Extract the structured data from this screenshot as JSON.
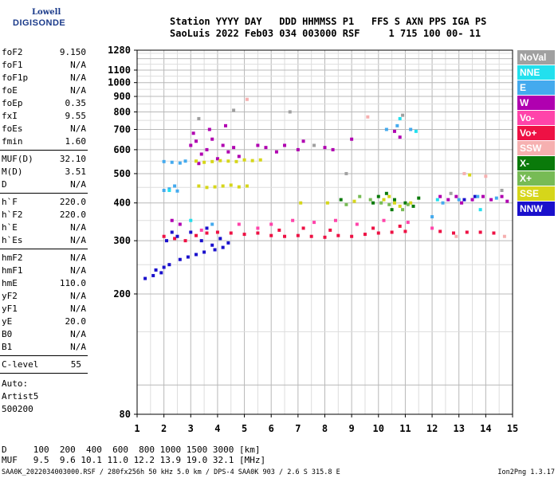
{
  "logo": {
    "line1": "Lowell",
    "line2": "DIGISONDE"
  },
  "header": {
    "line1": "Station YYYY DAY   DDD HHMMSS P1   FFS S AXN PPS IGA PS",
    "line2": "SaoLuis 2022 Feb03 034 003000 RSF     1 715 100 00- 11"
  },
  "params": {
    "block1": [
      {
        "label": "foF2",
        "value": "9.150"
      },
      {
        "label": "foF1",
        "value": "N/A"
      },
      {
        "label": "foF1p",
        "value": "N/A"
      },
      {
        "label": "foE",
        "value": "N/A"
      },
      {
        "label": "foEp",
        "value": "0.35"
      },
      {
        "label": "fxI",
        "value": "9.55"
      },
      {
        "label": "foEs",
        "value": "N/A"
      },
      {
        "label": "fmin",
        "value": "1.60"
      }
    ],
    "block2": [
      {
        "label": "MUF(D)",
        "value": "32.10"
      },
      {
        "label": "M(D)",
        "value": "3.51"
      },
      {
        "label": "D",
        "value": "N/A"
      }
    ],
    "block3": [
      {
        "label": "h`F",
        "value": "220.0"
      },
      {
        "label": "h`F2",
        "value": "220.0"
      },
      {
        "label": "h`E",
        "value": "N/A"
      },
      {
        "label": "h`Es",
        "value": "N/A"
      }
    ],
    "block4": [
      {
        "label": "hmF2",
        "value": "N/A"
      },
      {
        "label": "hmF1",
        "value": "N/A"
      },
      {
        "label": "hmE",
        "value": "110.0"
      },
      {
        "label": "yF2",
        "value": "N/A"
      },
      {
        "label": "yF1",
        "value": "N/A"
      },
      {
        "label": "yE",
        "value": "20.0"
      },
      {
        "label": "B0",
        "value": "N/A"
      },
      {
        "label": "B1",
        "value": "N/A"
      }
    ],
    "clevel": {
      "label": "C-level",
      "value": "55"
    },
    "auto": [
      "Auto:",
      "Artist5",
      "500200"
    ]
  },
  "legend": [
    {
      "label": "NoVal",
      "color": "#a0a0a0"
    },
    {
      "label": "NNE",
      "color": "#22e0ee"
    },
    {
      "label": "E",
      "color": "#44aaee"
    },
    {
      "label": "W",
      "color": "#b000b0"
    },
    {
      "label": "Vo-",
      "color": "#ff44aa"
    },
    {
      "label": "Vo+",
      "color": "#ee1144"
    },
    {
      "label": "SSW",
      "color": "#f6b0b0"
    },
    {
      "label": "X-",
      "color": "#0a7a0a"
    },
    {
      "label": "X+",
      "color": "#77bb55"
    },
    {
      "label": "SSE",
      "color": "#d6d61a"
    },
    {
      "label": "NNW",
      "color": "#1a10cc"
    }
  ],
  "muf_table": {
    "line1": "D     100  200  400  600  800 1000 1500 3000 [km]",
    "line2": "MUF   9.5  9.6 10.1 11.0 12.2 13.9 19.0 32.1 [MHz]"
  },
  "footer": "SAA0K_2022034003000.RSF / 280fx256h 50 kHz 5.0 km / DPS-4 SAA0K 903 / 2.6 S 315.8 E",
  "version": "Ion2Png 1.3.17",
  "chart_data": {
    "type": "scatter",
    "title": "",
    "xlabel": "",
    "ylabel": "",
    "xlim": [
      1,
      15
    ],
    "ylim": [
      80,
      1280
    ],
    "x_ticks": [
      1,
      2,
      3,
      4,
      5,
      6,
      7,
      8,
      9,
      10,
      11,
      12,
      13,
      14,
      15
    ],
    "y_ticks": [
      80,
      200,
      300,
      400,
      500,
      600,
      700,
      800,
      900,
      1000,
      1100,
      1280
    ],
    "y_scale": "log",
    "grid": true,
    "series": [
      {
        "name": "Vo+",
        "color": "#ee1144",
        "points": [
          [
            2.0,
            310
          ],
          [
            2.4,
            305
          ],
          [
            2.8,
            300
          ],
          [
            3.2,
            312
          ],
          [
            3.6,
            318
          ],
          [
            4.0,
            320
          ],
          [
            4.5,
            318
          ],
          [
            5.0,
            315
          ],
          [
            5.5,
            318
          ],
          [
            6.0,
            312
          ],
          [
            6.5,
            310
          ],
          [
            7.0,
            312
          ],
          [
            7.5,
            310
          ],
          [
            8.0,
            308
          ],
          [
            8.5,
            312
          ],
          [
            9.0,
            310
          ],
          [
            9.5,
            315
          ],
          [
            10.0,
            318
          ],
          [
            10.5,
            320
          ],
          [
            11.0,
            322
          ],
          [
            12.3,
            322
          ],
          [
            12.8,
            318
          ],
          [
            13.3,
            320
          ],
          [
            13.8,
            320
          ],
          [
            14.3,
            318
          ],
          [
            9.8,
            330
          ],
          [
            10.8,
            335
          ],
          [
            8.2,
            325
          ],
          [
            7.2,
            330
          ],
          [
            6.3,
            325
          ]
        ]
      },
      {
        "name": "NNW",
        "color": "#1a10cc",
        "points": [
          [
            1.3,
            225
          ],
          [
            1.6,
            230
          ],
          [
            1.9,
            235
          ],
          [
            2.2,
            250
          ],
          [
            2.6,
            260
          ],
          [
            2.9,
            265
          ],
          [
            3.2,
            270
          ],
          [
            3.5,
            275
          ],
          [
            3.9,
            280
          ],
          [
            4.2,
            285
          ],
          [
            2.1,
            300
          ],
          [
            2.5,
            310
          ],
          [
            3.0,
            320
          ],
          [
            3.4,
            300
          ],
          [
            3.8,
            290
          ],
          [
            4.1,
            305
          ],
          [
            1.7,
            240
          ],
          [
            2.0,
            245
          ],
          [
            4.4,
            295
          ],
          [
            3.6,
            330
          ],
          [
            2.3,
            320
          ],
          [
            13.2,
            410
          ],
          [
            13.6,
            420
          ]
        ]
      },
      {
        "name": "W",
        "color": "#b000b0",
        "points": [
          [
            3.0,
            620
          ],
          [
            3.2,
            640
          ],
          [
            3.4,
            580
          ],
          [
            3.6,
            600
          ],
          [
            3.8,
            650
          ],
          [
            4.0,
            560
          ],
          [
            4.2,
            620
          ],
          [
            4.4,
            590
          ],
          [
            4.6,
            610
          ],
          [
            4.8,
            570
          ],
          [
            3.3,
            540
          ],
          [
            3.7,
            700
          ],
          [
            5.5,
            620
          ],
          [
            5.8,
            610
          ],
          [
            6.2,
            590
          ],
          [
            6.5,
            620
          ],
          [
            7.0,
            600
          ],
          [
            7.2,
            640
          ],
          [
            8.0,
            610
          ],
          [
            8.3,
            600
          ],
          [
            9.0,
            650
          ],
          [
            12.3,
            420
          ],
          [
            12.6,
            410
          ],
          [
            12.9,
            420
          ],
          [
            13.1,
            400
          ],
          [
            13.5,
            410
          ],
          [
            13.9,
            420
          ],
          [
            14.2,
            410
          ],
          [
            14.6,
            420
          ],
          [
            14.8,
            405
          ],
          [
            3.1,
            680
          ],
          [
            4.3,
            720
          ],
          [
            2.3,
            350
          ],
          [
            2.6,
            340
          ],
          [
            10.6,
            690
          ],
          [
            10.8,
            660
          ]
        ]
      },
      {
        "name": "SSE",
        "color": "#d6d61a",
        "points": [
          [
            3.2,
            550
          ],
          [
            3.5,
            545
          ],
          [
            3.8,
            548
          ],
          [
            4.1,
            552
          ],
          [
            4.4,
            550
          ],
          [
            4.7,
            548
          ],
          [
            5.0,
            555
          ],
          [
            5.3,
            552
          ],
          [
            5.6,
            555
          ],
          [
            3.3,
            455
          ],
          [
            3.6,
            450
          ],
          [
            3.9,
            452
          ],
          [
            4.2,
            455
          ],
          [
            4.5,
            458
          ],
          [
            4.8,
            452
          ],
          [
            5.1,
            455
          ],
          [
            10.2,
            410
          ],
          [
            10.4,
            420
          ],
          [
            10.6,
            400
          ],
          [
            10.8,
            390
          ],
          [
            8.1,
            400
          ],
          [
            9.1,
            405
          ],
          [
            7.1,
            400
          ],
          [
            11.2,
            400
          ],
          [
            13.4,
            495
          ]
        ]
      },
      {
        "name": "E",
        "color": "#44aaee",
        "points": [
          [
            2.0,
            440
          ],
          [
            2.2,
            445
          ],
          [
            2.5,
            438
          ],
          [
            2.0,
            548
          ],
          [
            2.3,
            545
          ],
          [
            2.6,
            542
          ],
          [
            2.8,
            550
          ],
          [
            10.3,
            700
          ],
          [
            10.7,
            720
          ],
          [
            11.2,
            700
          ],
          [
            12.4,
            400
          ],
          [
            13.0,
            410
          ],
          [
            13.7,
            420
          ],
          [
            14.4,
            415
          ],
          [
            2.4,
            455
          ],
          [
            12.0,
            360
          ],
          [
            3.8,
            340
          ]
        ]
      },
      {
        "name": "X-",
        "color": "#0a7a0a",
        "points": [
          [
            10.0,
            420
          ],
          [
            10.3,
            430
          ],
          [
            10.6,
            410
          ],
          [
            11.0,
            400
          ],
          [
            11.3,
            390
          ],
          [
            9.8,
            400
          ],
          [
            8.6,
            410
          ],
          [
            10.5,
            380
          ],
          [
            11.5,
            415
          ]
        ]
      },
      {
        "name": "X+",
        "color": "#77bb55",
        "points": [
          [
            9.7,
            410
          ],
          [
            10.1,
            400
          ],
          [
            10.4,
            395
          ],
          [
            10.9,
            380
          ],
          [
            11.1,
            395
          ],
          [
            9.3,
            420
          ],
          [
            8.8,
            395
          ]
        ]
      },
      {
        "name": "Vo-",
        "color": "#ff44aa",
        "points": [
          [
            5.5,
            330
          ],
          [
            6.0,
            340
          ],
          [
            6.8,
            350
          ],
          [
            7.6,
            345
          ],
          [
            8.4,
            350
          ],
          [
            9.2,
            340
          ],
          [
            10.2,
            350
          ],
          [
            11.1,
            345
          ],
          [
            12.0,
            330
          ],
          [
            4.8,
            340
          ],
          [
            3.4,
            325
          ]
        ]
      },
      {
        "name": "NNE",
        "color": "#22e0ee",
        "points": [
          [
            10.8,
            760
          ],
          [
            11.4,
            690
          ],
          [
            12.2,
            410
          ],
          [
            13.8,
            380
          ],
          [
            3.0,
            350
          ],
          [
            2.2,
            440
          ]
        ]
      },
      {
        "name": "SSW",
        "color": "#f6b0b0",
        "points": [
          [
            13.2,
            500
          ],
          [
            14.0,
            490
          ],
          [
            5.1,
            880
          ],
          [
            9.6,
            770
          ],
          [
            12.9,
            310
          ],
          [
            14.7,
            310
          ]
        ]
      },
      {
        "name": "NoVal",
        "color": "#a0a0a0",
        "points": [
          [
            4.6,
            810
          ],
          [
            3.3,
            760
          ],
          [
            6.7,
            800
          ],
          [
            7.6,
            620
          ],
          [
            10.9,
            780
          ],
          [
            12.7,
            430
          ],
          [
            14.6,
            440
          ],
          [
            8.8,
            500
          ]
        ]
      }
    ]
  }
}
